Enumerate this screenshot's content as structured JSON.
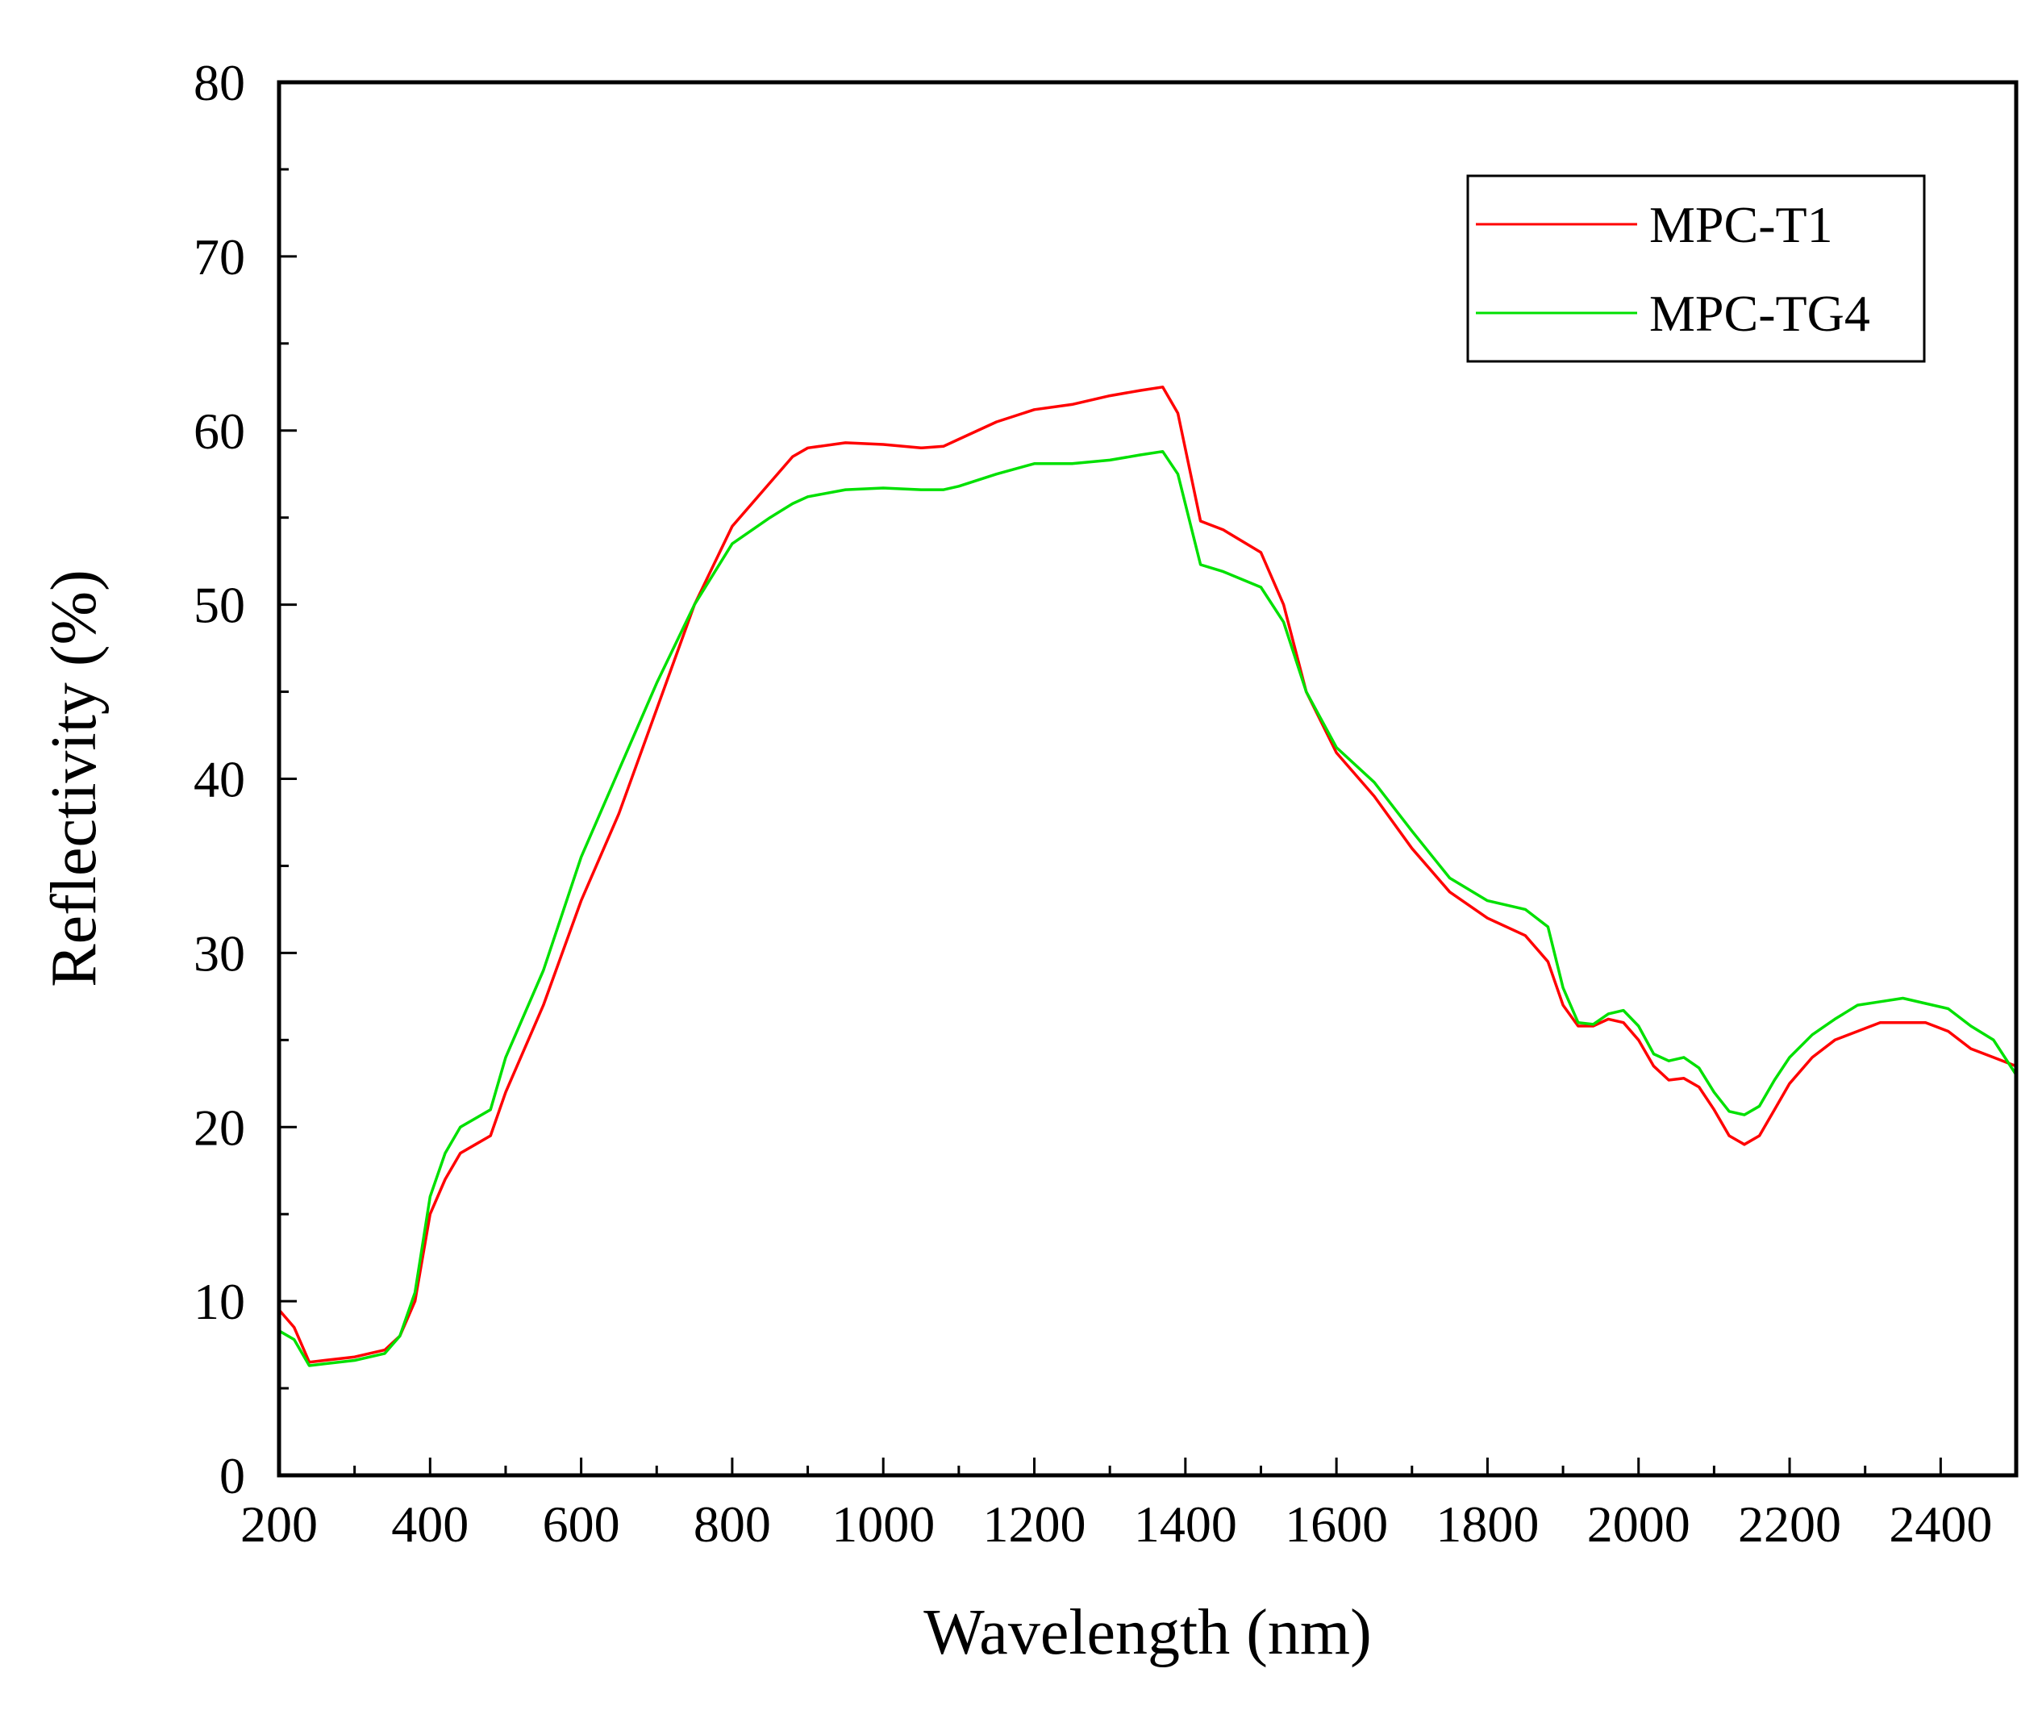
{
  "colors": {
    "series_red": "#ff0000",
    "series_green": "#00e000",
    "axis": "#000000"
  },
  "chart_data": {
    "type": "line",
    "title": "",
    "xlabel": "Wavelength (nm)",
    "ylabel": "Reflectivity (%)",
    "xlim": [
      200,
      2500
    ],
    "ylim": [
      0,
      80
    ],
    "xticks": [
      200,
      400,
      600,
      800,
      1000,
      1200,
      1400,
      1600,
      1800,
      2000,
      2200,
      2400
    ],
    "yticks": [
      0,
      10,
      20,
      30,
      40,
      50,
      60,
      70,
      80
    ],
    "legend_position": "top-right",
    "grid": false,
    "series": [
      {
        "name": "MPC-T1",
        "color": "#ff0000",
        "x": [
          200,
          220,
          240,
          260,
          300,
          340,
          360,
          380,
          400,
          420,
          440,
          460,
          480,
          500,
          550,
          600,
          650,
          700,
          750,
          800,
          850,
          880,
          900,
          950,
          1000,
          1050,
          1080,
          1100,
          1150,
          1200,
          1250,
          1300,
          1340,
          1370,
          1390,
          1420,
          1450,
          1500,
          1530,
          1560,
          1600,
          1650,
          1700,
          1750,
          1800,
          1850,
          1880,
          1900,
          1920,
          1940,
          1960,
          1980,
          2000,
          2020,
          2040,
          2060,
          2080,
          2100,
          2120,
          2140,
          2160,
          2180,
          2200,
          2230,
          2260,
          2290,
          2320,
          2350,
          2380,
          2410,
          2440,
          2470,
          2500
        ],
        "y": [
          9.5,
          8.5,
          6.5,
          6.6,
          6.8,
          7.2,
          8,
          10,
          15,
          17,
          18.5,
          19,
          19.5,
          22,
          27,
          33,
          38,
          44,
          50,
          54.5,
          57,
          58.5,
          59,
          59.3,
          59.2,
          59,
          59.1,
          59.5,
          60.5,
          61.2,
          61.5,
          62,
          62.3,
          62.5,
          61,
          54.8,
          54.3,
          53,
          50,
          45,
          41.5,
          39,
          36,
          33.5,
          32,
          31,
          29.5,
          27,
          25.8,
          25.8,
          26.2,
          26,
          25,
          23.5,
          22.7,
          22.8,
          22.3,
          21,
          19.5,
          19,
          19.5,
          21,
          22.5,
          24,
          25,
          25.5,
          26,
          26,
          26,
          25.5,
          24.5,
          24,
          23.5
        ]
      },
      {
        "name": "MPC-TG4",
        "color": "#00e000",
        "x": [
          200,
          220,
          240,
          260,
          300,
          340,
          360,
          380,
          400,
          420,
          440,
          460,
          480,
          500,
          550,
          600,
          650,
          700,
          750,
          800,
          850,
          880,
          900,
          950,
          1000,
          1050,
          1080,
          1100,
          1150,
          1200,
          1250,
          1300,
          1340,
          1370,
          1390,
          1420,
          1450,
          1500,
          1530,
          1560,
          1600,
          1650,
          1700,
          1750,
          1800,
          1850,
          1880,
          1900,
          1920,
          1940,
          1960,
          1980,
          2000,
          2020,
          2040,
          2060,
          2080,
          2100,
          2120,
          2140,
          2160,
          2180,
          2200,
          2230,
          2260,
          2290,
          2320,
          2350,
          2380,
          2410,
          2440,
          2470,
          2500
        ],
        "y": [
          8.3,
          7.8,
          6.3,
          6.4,
          6.6,
          7,
          8,
          10.5,
          16,
          18.5,
          20,
          20.5,
          21,
          24,
          29,
          35.5,
          40.5,
          45.5,
          50,
          53.5,
          55,
          55.8,
          56.2,
          56.6,
          56.7,
          56.6,
          56.6,
          56.8,
          57.5,
          58.1,
          58.1,
          58.3,
          58.6,
          58.8,
          57.5,
          52.3,
          51.9,
          51,
          49,
          45,
          41.8,
          39.8,
          37,
          34.3,
          33,
          32.5,
          31.5,
          28,
          26,
          25.9,
          26.5,
          26.7,
          25.8,
          24.2,
          23.8,
          24,
          23.4,
          22,
          20.9,
          20.7,
          21.2,
          22.7,
          24,
          25.3,
          26.2,
          27,
          27.2,
          27.4,
          27.1,
          26.8,
          25.8,
          25,
          23
        ]
      }
    ]
  }
}
